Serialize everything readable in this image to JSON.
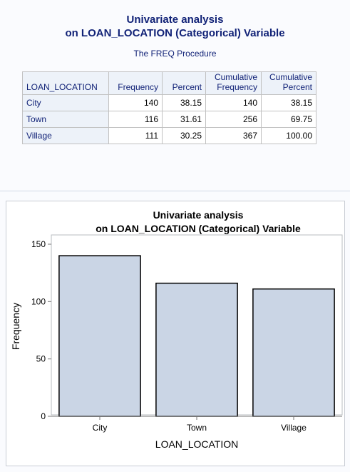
{
  "report": {
    "title_line1": "Univariate analysis",
    "title_line2": "on LOAN_LOCATION (Categorical) Variable",
    "procedure": "The FREQ Procedure"
  },
  "table": {
    "headers": {
      "variable": "LOAN_LOCATION",
      "frequency": "Frequency",
      "percent": "Percent",
      "cum_freq_line1": "Cumulative",
      "cum_freq_line2": "Frequency",
      "cum_pct_line1": "Cumulative",
      "cum_pct_line2": "Percent"
    },
    "rows": [
      {
        "label": "City",
        "frequency": "140",
        "percent": "38.15",
        "cum_freq": "140",
        "cum_pct": "38.15"
      },
      {
        "label": "Town",
        "frequency": "116",
        "percent": "31.61",
        "cum_freq": "256",
        "cum_pct": "69.75"
      },
      {
        "label": "Village",
        "frequency": "111",
        "percent": "30.25",
        "cum_freq": "367",
        "cum_pct": "100.00"
      }
    ]
  },
  "chart_data": {
    "type": "bar",
    "title": "Univariate analysis",
    "subtitle": "on LOAN_LOCATION (Categorical) Variable",
    "categories": [
      "City",
      "Town",
      "Village"
    ],
    "values": [
      140,
      116,
      111
    ],
    "xlabel": "LOAN_LOCATION",
    "ylabel": "Frequency",
    "ylim": [
      0,
      150
    ],
    "yticks": [
      0,
      50,
      100,
      150
    ],
    "grid": false,
    "bar_fill": "#cad5e5",
    "bar_stroke": "#000000"
  },
  "colors": {
    "title_text": "#112277",
    "header_bg": "#edf2f9"
  }
}
